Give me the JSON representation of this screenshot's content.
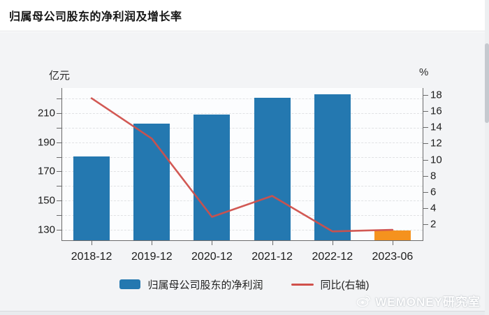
{
  "header": {
    "title": "归属母公司股东的净利润及增长率"
  },
  "chart_data": {
    "type": "bar",
    "title": "归属母公司股东的净利润及增长率",
    "categories": [
      "2018-12",
      "2019-12",
      "2020-12",
      "2021-12",
      "2022-12",
      "2023-06"
    ],
    "series": [
      {
        "name": "归属母公司股东的净利润",
        "type": "bar",
        "axis": "left",
        "unit": "亿元",
        "values": [
          180.3,
          203.0,
          208.9,
          220.4,
          222.8,
          129.4
        ],
        "bar_colors": [
          "#2478b0",
          "#2478b0",
          "#2478b0",
          "#2478b0",
          "#2478b0",
          "#f5921e"
        ]
      },
      {
        "name": "同比(右轴)",
        "type": "line",
        "axis": "right",
        "unit": "%",
        "values": [
          17.6,
          12.6,
          2.9,
          5.5,
          1.1,
          1.3
        ],
        "color": "#d0504b"
      }
    ],
    "left_axis": {
      "unit": "亿元",
      "min": 122.7,
      "max": 227.3,
      "first_tick": 130,
      "last_tick": 220,
      "tick_step": 10,
      "labeled_ticks": [
        130,
        150,
        170,
        190,
        210
      ]
    },
    "right_axis": {
      "unit": "%",
      "min": 0,
      "max": 18.87,
      "ticks": [
        2,
        4,
        6,
        8,
        10,
        12,
        14,
        16,
        18
      ]
    },
    "grid": "horizontal-dashed",
    "legend_position": "bottom"
  },
  "watermark": {
    "text": "WEMONEY研究室"
  },
  "colors": {
    "bar_blue": "#2478b0",
    "bar_orange": "#f5921e",
    "line_red": "#d0504b",
    "grid": "#e0e2e4",
    "axis": "#6a6a6a"
  }
}
